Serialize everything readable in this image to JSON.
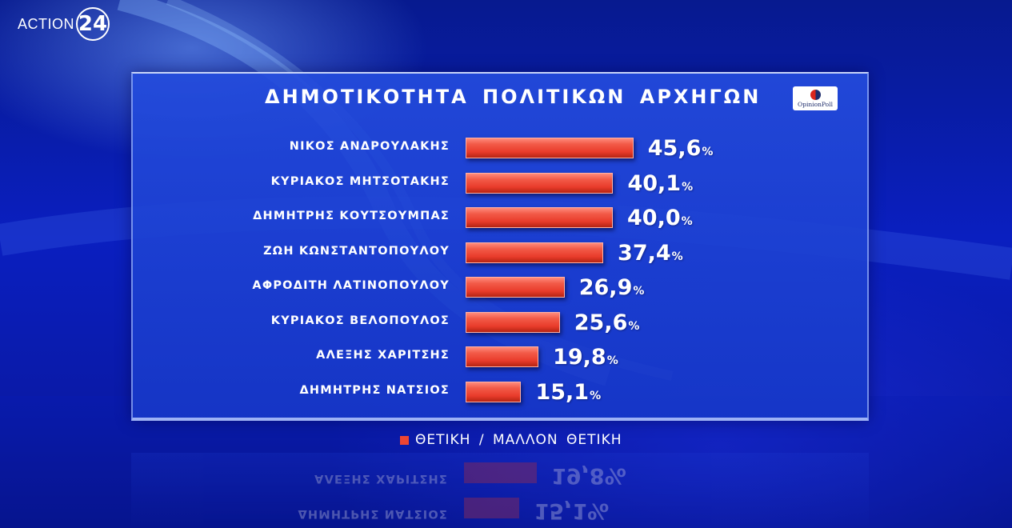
{
  "brand": {
    "channel_prefix": "ACTION",
    "channel_number": "24"
  },
  "pollster": {
    "name": "OpinionPoll"
  },
  "chart_data": {
    "type": "bar",
    "orientation": "horizontal",
    "title": "ΔΗΜΟΤΙΚΟΤΗΤΑ ΠΟΛΙΤΙΚΩΝ ΑΡΧΗΓΩΝ",
    "categories": [
      "ΝΙΚΟΣ ΑΝΔΡΟΥΛΑΚΗΣ",
      "ΚΥΡΙΑΚΟΣ ΜΗΤΣΟΤΑΚΗΣ",
      "ΔΗΜΗΤΡΗΣ ΚΟΥΤΣΟΥΜΠΑΣ",
      "ΖΩΗ ΚΩΝΣΤΑΝΤΟΠΟΥΛΟΥ",
      "ΑΦΡΟΔΙΤΗ ΛΑΤΙΝΟΠΟΥΛΟΥ",
      "ΚΥΡΙΑΚΟΣ ΒΕΛΟΠΟΥΛΟΣ",
      "ΑΛΕΞΗΣ ΧΑΡΙΤΣΗΣ",
      "ΔΗΜΗΤΡΗΣ ΝΑΤΣΙΟΣ"
    ],
    "series": [
      {
        "name": "ΘΕΤΙΚΗ / ΜΑΛΛΟΝ ΘΕΤΙΚΗ",
        "color": "#ee4532",
        "values": [
          45.6,
          40.1,
          40.0,
          37.4,
          26.9,
          25.6,
          19.8,
          15.1
        ],
        "labels": [
          "45,6",
          "40,1",
          "40,0",
          "37,4",
          "26,9",
          "25,6",
          "19,8",
          "15,1"
        ]
      }
    ],
    "unit_symbol": "%",
    "legend_position": "bottom-center",
    "grid": false
  }
}
